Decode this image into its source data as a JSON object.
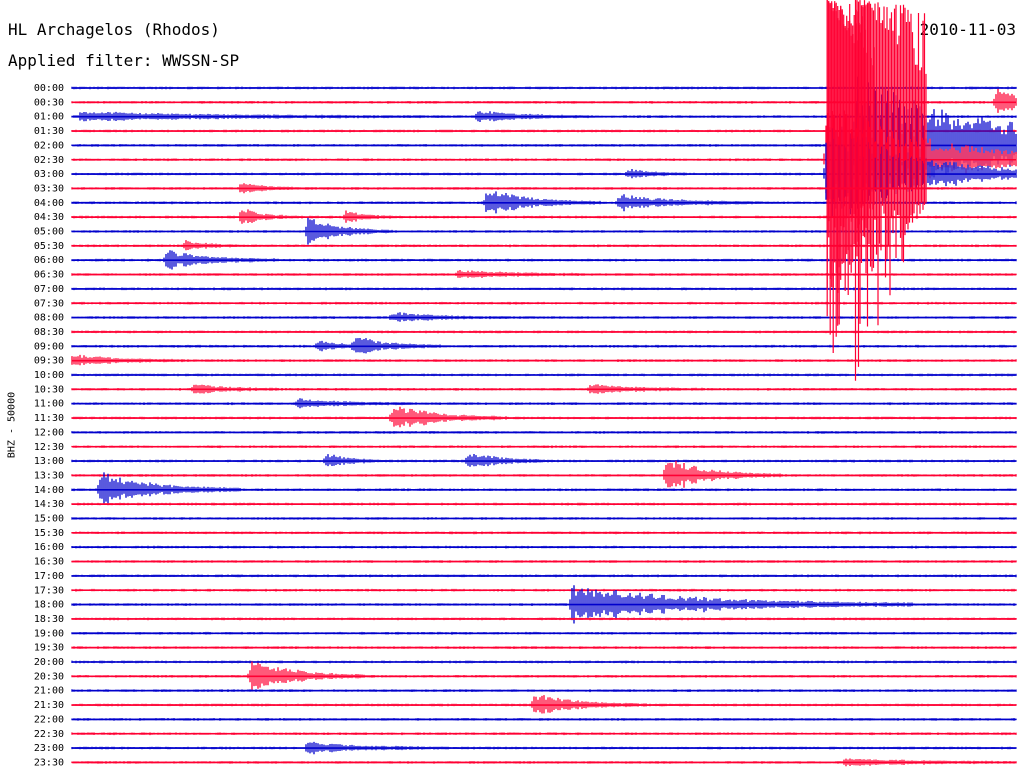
{
  "header": {
    "station": "HL Archagelos (Rhodos)",
    "filter": "Applied filter: WWSSN-SP",
    "date": "2010-11-03"
  },
  "chart_data": {
    "type": "line",
    "title": "HL Archagelos (Rhodos)",
    "subtitle": "Applied filter: WWSSN-SP",
    "date": "2010-11-03",
    "ylabel": "BHZ - 50000",
    "xlabel": "",
    "tick_labels": [
      "00:00",
      "00:30",
      "01:00",
      "01:30",
      "02:00",
      "02:30",
      "03:00",
      "03:30",
      "04:00",
      "04:30",
      "05:00",
      "05:30",
      "06:00",
      "06:30",
      "07:00",
      "07:30",
      "08:00",
      "08:30",
      "09:00",
      "09:30",
      "10:00",
      "10:30",
      "11:00",
      "11:30",
      "12:00",
      "12:30",
      "13:00",
      "13:30",
      "14:00",
      "14:30",
      "15:00",
      "15:30",
      "16:00",
      "16:30",
      "17:00",
      "17:30",
      "18:00",
      "18:30",
      "19:00",
      "19:30",
      "20:00",
      "20:30",
      "21:00",
      "21:30",
      "22:00",
      "22:30",
      "23:00",
      "23:30"
    ],
    "x_range_minutes": [
      0,
      30
    ],
    "colors": {
      "even": "#0000cc",
      "odd": "#ff0033"
    },
    "grid": false,
    "events": [
      {
        "row": "00:30",
        "at": 0.98,
        "amp": 14,
        "dur": 0.03
      },
      {
        "row": "01:00",
        "at": 0.01,
        "amp": 5,
        "dur": 0.12
      },
      {
        "row": "01:00",
        "at": 0.43,
        "amp": 6,
        "dur": 0.04
      },
      {
        "row": "02:00",
        "at": 0.83,
        "amp": 70,
        "dur": 0.15,
        "sat": true
      },
      {
        "row": "02:30",
        "at": 0.8,
        "amp": 60,
        "dur": 0.1,
        "sat": true
      },
      {
        "row": "03:00",
        "at": 0.8,
        "amp": 60,
        "dur": 0.08,
        "sat": true
      },
      {
        "row": "03:00",
        "at": 0.59,
        "amp": 5,
        "dur": 0.02
      },
      {
        "row": "03:30",
        "at": 0.18,
        "amp": 6,
        "dur": 0.02
      },
      {
        "row": "04:00",
        "at": 0.44,
        "amp": 14,
        "dur": 0.04
      },
      {
        "row": "04:00",
        "at": 0.58,
        "amp": 8,
        "dur": 0.05
      },
      {
        "row": "04:30",
        "at": 0.18,
        "amp": 9,
        "dur": 0.02
      },
      {
        "row": "04:30",
        "at": 0.29,
        "amp": 6,
        "dur": 0.02
      },
      {
        "row": "05:00",
        "at": 0.25,
        "amp": 14,
        "dur": 0.03
      },
      {
        "row": "05:30",
        "at": 0.12,
        "amp": 5,
        "dur": 0.02
      },
      {
        "row": "06:00",
        "at": 0.1,
        "amp": 10,
        "dur": 0.04
      },
      {
        "row": "06:30",
        "at": 0.41,
        "amp": 4,
        "dur": 0.05
      },
      {
        "row": "08:00",
        "at": 0.34,
        "amp": 5,
        "dur": 0.04
      },
      {
        "row": "09:00",
        "at": 0.26,
        "amp": 6,
        "dur": 0.02
      },
      {
        "row": "09:00",
        "at": 0.3,
        "amp": 10,
        "dur": 0.03
      },
      {
        "row": "09:30",
        "at": 0.0,
        "amp": 6,
        "dur": 0.04
      },
      {
        "row": "10:30",
        "at": 0.13,
        "amp": 5,
        "dur": 0.03
      },
      {
        "row": "10:30",
        "at": 0.55,
        "amp": 5,
        "dur": 0.04
      },
      {
        "row": "11:00",
        "at": 0.24,
        "amp": 5,
        "dur": 0.04
      },
      {
        "row": "11:30",
        "at": 0.34,
        "amp": 14,
        "dur": 0.04
      },
      {
        "row": "13:00",
        "at": 0.27,
        "amp": 8,
        "dur": 0.02
      },
      {
        "row": "13:00",
        "at": 0.42,
        "amp": 9,
        "dur": 0.03
      },
      {
        "row": "13:30",
        "at": 0.63,
        "amp": 18,
        "dur": 0.04
      },
      {
        "row": "14:00",
        "at": 0.03,
        "amp": 18,
        "dur": 0.05
      },
      {
        "row": "18:00",
        "at": 0.53,
        "amp": 20,
        "dur": 0.12
      },
      {
        "row": "20:30",
        "at": 0.19,
        "amp": 18,
        "dur": 0.04
      },
      {
        "row": "21:30",
        "at": 0.49,
        "amp": 12,
        "dur": 0.04
      },
      {
        "row": "23:00",
        "at": 0.25,
        "amp": 6,
        "dur": 0.05
      },
      {
        "row": "23:30",
        "at": 0.82,
        "amp": 4,
        "dur": 0.06
      }
    ]
  }
}
